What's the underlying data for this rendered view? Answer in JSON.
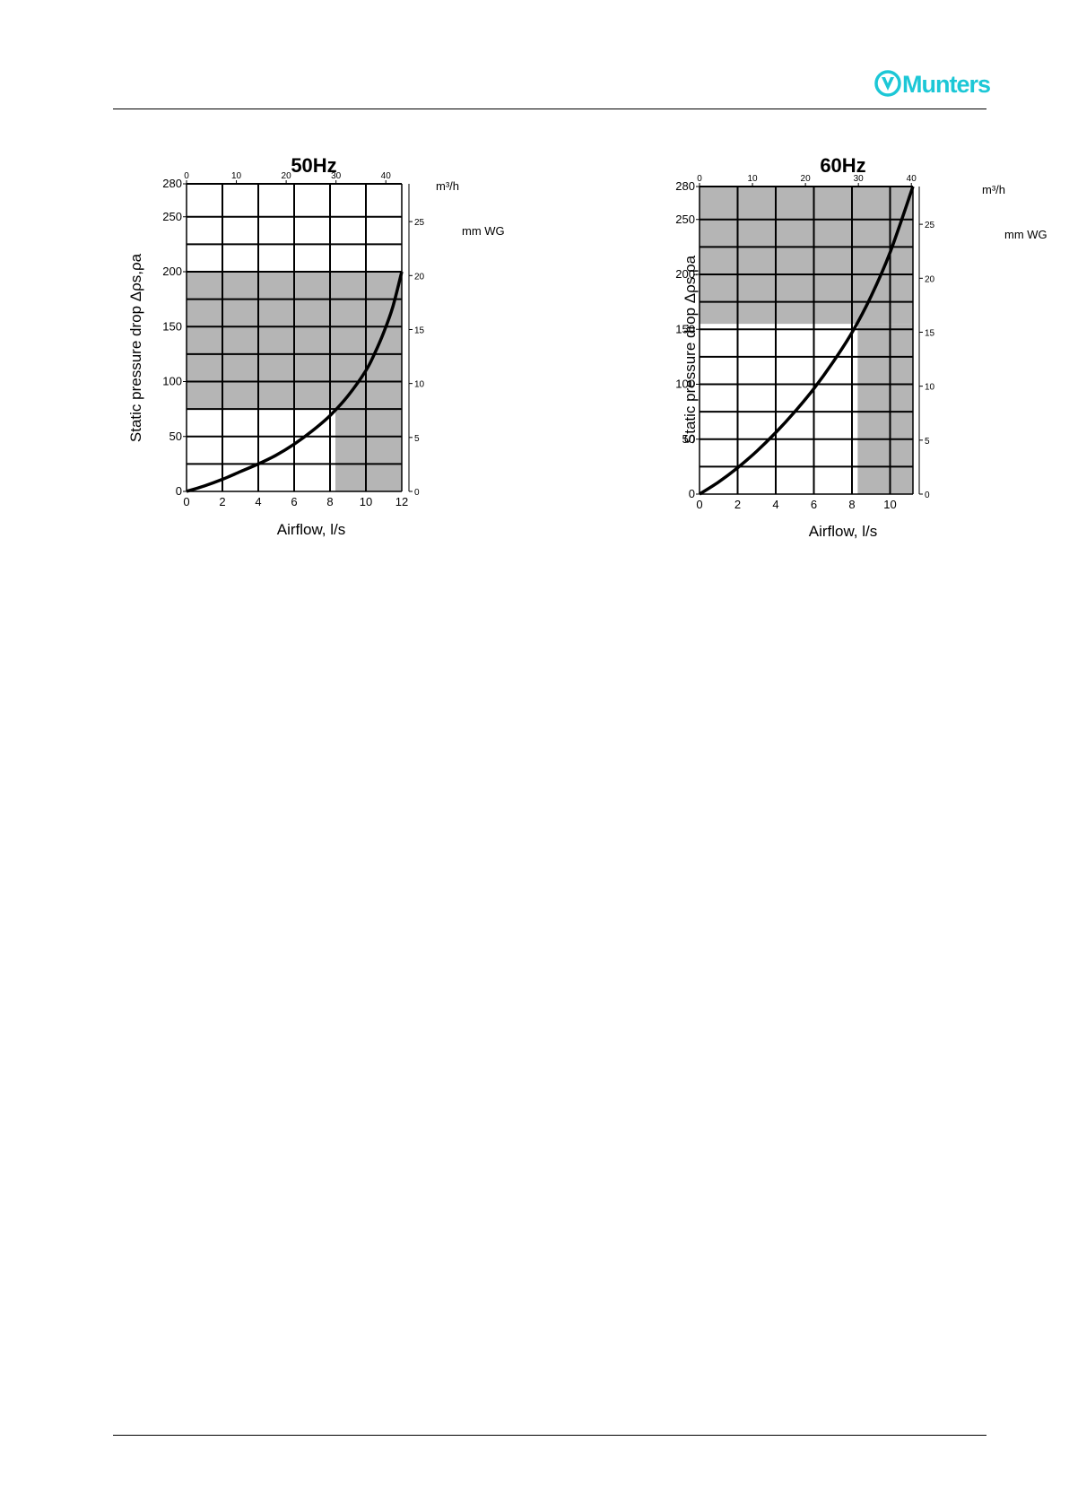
{
  "header": {
    "brand": "Munters",
    "brand_color": "#1cc7d6",
    "logo_icon": "munters-v-logo-icon"
  },
  "chart_data": [
    {
      "type": "line",
      "title": "50Hz",
      "xlabel": "Airflow, l/s",
      "ylabel": "Static pressure drop Δρs,ρa",
      "xlim": [
        0,
        12
      ],
      "ylim": [
        0,
        280
      ],
      "x_ticks": [
        0,
        2,
        4,
        6,
        8,
        10,
        12
      ],
      "y_ticks": [
        0,
        50,
        100,
        200,
        250,
        280
      ],
      "y_ticks_unlabeled": [
        150
      ],
      "y_tick_150_label": "150",
      "grid": true,
      "grid_y": [
        25,
        50,
        75,
        100,
        125,
        150,
        175,
        200,
        225,
        250,
        280
      ],
      "top_axis": {
        "unit": "m³/h",
        "ticks": [
          0,
          10,
          20,
          30,
          40
        ]
      },
      "right_axis": {
        "unit": "mm WG",
        "ticks": [
          0,
          5,
          10,
          15,
          20,
          25
        ]
      },
      "shaded_regions": [
        {
          "x": [
            0,
            12
          ],
          "y": [
            75,
            200
          ]
        },
        {
          "x": [
            8.3,
            12
          ],
          "y": [
            0,
            75
          ]
        }
      ],
      "series": [
        {
          "x": [
            0,
            1,
            2,
            3,
            4,
            5,
            6,
            7,
            8,
            9,
            10,
            10.5,
            11,
            11.5,
            12
          ],
          "y": [
            0,
            5,
            11,
            18,
            25,
            33,
            43,
            55,
            69,
            87,
            110,
            126,
            145,
            168,
            200
          ]
        }
      ],
      "shade_color": "#b5b5b5"
    },
    {
      "type": "line",
      "title": "60Hz",
      "xlabel": "Airflow, l/s",
      "ylabel": "Static pressure drop Δρs,ρa",
      "xlim": [
        0,
        11.2
      ],
      "ylim": [
        0,
        280
      ],
      "x_ticks": [
        0,
        2,
        4,
        6,
        8,
        10
      ],
      "y_ticks": [
        0,
        50,
        100,
        150,
        200,
        250,
        280
      ],
      "grid": true,
      "grid_y": [
        25,
        50,
        75,
        100,
        125,
        150,
        175,
        200,
        225,
        250,
        280
      ],
      "top_axis": {
        "unit": "m³/h",
        "ticks": [
          0,
          10,
          20,
          30,
          40
        ]
      },
      "right_axis": {
        "unit": "mm WG",
        "ticks": [
          0,
          5,
          10,
          15,
          20,
          25
        ]
      },
      "shaded_regions": [
        {
          "x": [
            0,
            11.2
          ],
          "y": [
            155,
            280
          ]
        },
        {
          "x": [
            8.3,
            11.2
          ],
          "y": [
            0,
            155
          ]
        }
      ],
      "series": [
        {
          "x": [
            0,
            1,
            2,
            3,
            4,
            5,
            6,
            7,
            8,
            9,
            10,
            11.2
          ],
          "y": [
            0,
            11,
            24,
            39,
            56,
            75,
            96,
            120,
            147,
            180,
            220,
            280
          ]
        }
      ],
      "shade_color": "#b5b5b5"
    }
  ]
}
